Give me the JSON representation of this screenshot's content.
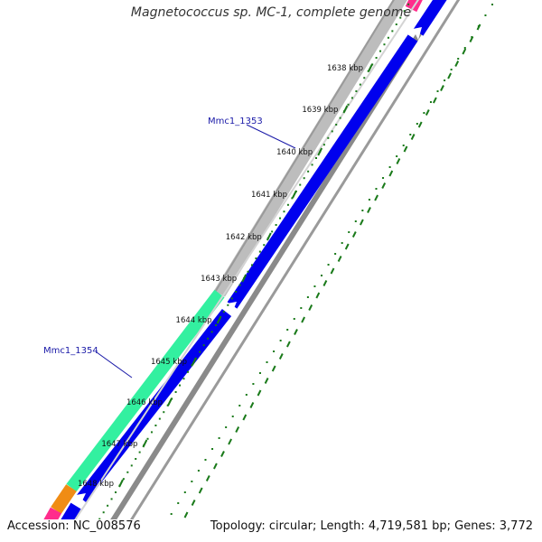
{
  "title": "Magnetococcus sp. MC-1, complete genome",
  "footer": {
    "accession": "Accession: NC_008576",
    "summary": "Topology: circular; Length: 4,719,581 bp; Genes: 3,772"
  },
  "colors": {
    "forward_gene_blue": "#0000ee",
    "gray_track": "#bdbdbd",
    "green_segment": "#33f0a0",
    "tick_green": "#1a7a1a",
    "orange_segment": "#f08c14",
    "pink_segment": "#ff2c8c",
    "label_blue": "#1a1aa8"
  },
  "ticks": [
    {
      "label": "1638 kbp"
    },
    {
      "label": "1639 kbp"
    },
    {
      "label": "1640 kbp"
    },
    {
      "label": "1641 kbp"
    },
    {
      "label": "1642 kbp"
    },
    {
      "label": "1643 kbp"
    },
    {
      "label": "1644 kbp"
    },
    {
      "label": "1645 kbp"
    },
    {
      "label": "1646 kbp"
    },
    {
      "label": "1647 kbp"
    },
    {
      "label": "1648 kbp"
    }
  ],
  "gene_labels": [
    {
      "label": "Mmc1_1353"
    },
    {
      "label": "Mmc1_1354"
    }
  ]
}
